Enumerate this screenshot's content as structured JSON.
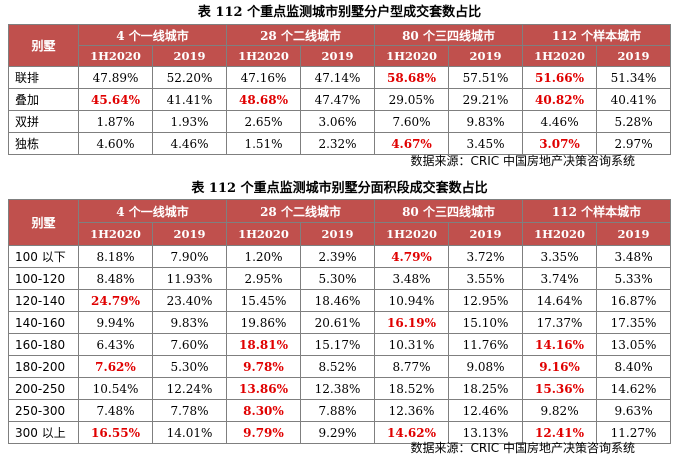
{
  "table1": {
    "title": "表 112 个重点监测城市别墅分户型成交套数占比",
    "corner": "别墅",
    "groups": [
      "4 个一线城市",
      "28 个二线城市",
      "80 个三四线城市",
      "112 个样本城市"
    ],
    "periods": [
      "1H2020",
      "2019"
    ],
    "rows": [
      {
        "label": "联排",
        "cells": [
          {
            "v": "47.89%",
            "hl": false
          },
          {
            "v": "52.20%",
            "hl": false
          },
          {
            "v": "47.16%",
            "hl": false
          },
          {
            "v": "47.14%",
            "hl": false
          },
          {
            "v": "58.68%",
            "hl": true
          },
          {
            "v": "57.51%",
            "hl": false
          },
          {
            "v": "51.66%",
            "hl": true
          },
          {
            "v": "51.34%",
            "hl": false
          }
        ]
      },
      {
        "label": "叠加",
        "cells": [
          {
            "v": "45.64%",
            "hl": true
          },
          {
            "v": "41.41%",
            "hl": false
          },
          {
            "v": "48.68%",
            "hl": true
          },
          {
            "v": "47.47%",
            "hl": false
          },
          {
            "v": "29.05%",
            "hl": false
          },
          {
            "v": "29.21%",
            "hl": false
          },
          {
            "v": "40.82%",
            "hl": true
          },
          {
            "v": "40.41%",
            "hl": false
          }
        ]
      },
      {
        "label": "双拼",
        "cells": [
          {
            "v": "1.87%",
            "hl": false
          },
          {
            "v": "1.93%",
            "hl": false
          },
          {
            "v": "2.65%",
            "hl": false
          },
          {
            "v": "3.06%",
            "hl": false
          },
          {
            "v": "7.60%",
            "hl": false
          },
          {
            "v": "9.83%",
            "hl": false
          },
          {
            "v": "4.46%",
            "hl": false
          },
          {
            "v": "5.28%",
            "hl": false
          }
        ]
      },
      {
        "label": "独栋",
        "cells": [
          {
            "v": "4.60%",
            "hl": false
          },
          {
            "v": "4.46%",
            "hl": false
          },
          {
            "v": "1.51%",
            "hl": false
          },
          {
            "v": "2.32%",
            "hl": false
          },
          {
            "v": "4.67%",
            "hl": true
          },
          {
            "v": "3.45%",
            "hl": false
          },
          {
            "v": "3.07%",
            "hl": true
          },
          {
            "v": "2.97%",
            "hl": false
          }
        ]
      }
    ],
    "source": "数据来源：CRIC 中国房地产决策咨询系统"
  },
  "table2": {
    "title": "表  112 个重点监测城市别墅分面积段成交套数占比",
    "corner": "别墅",
    "groups": [
      "4 个一线城市",
      "28 个二线城市",
      "80 个三四线城市",
      "112 个样本城市"
    ],
    "periods": [
      "1H2020",
      "2019"
    ],
    "rows": [
      {
        "label": "100 以下",
        "cells": [
          {
            "v": "8.18%",
            "hl": false
          },
          {
            "v": "7.90%",
            "hl": false
          },
          {
            "v": "1.20%",
            "hl": false
          },
          {
            "v": "2.39%",
            "hl": false
          },
          {
            "v": "4.79%",
            "hl": true
          },
          {
            "v": "3.72%",
            "hl": false
          },
          {
            "v": "3.35%",
            "hl": false
          },
          {
            "v": "3.48%",
            "hl": false
          }
        ]
      },
      {
        "label": "100-120",
        "cells": [
          {
            "v": "8.48%",
            "hl": false
          },
          {
            "v": "11.93%",
            "hl": false
          },
          {
            "v": "2.95%",
            "hl": false
          },
          {
            "v": "5.30%",
            "hl": false
          },
          {
            "v": "3.48%",
            "hl": false
          },
          {
            "v": "3.55%",
            "hl": false
          },
          {
            "v": "3.74%",
            "hl": false
          },
          {
            "v": "5.33%",
            "hl": false
          }
        ]
      },
      {
        "label": "120-140",
        "cells": [
          {
            "v": "24.79%",
            "hl": true
          },
          {
            "v": "23.40%",
            "hl": false
          },
          {
            "v": "15.45%",
            "hl": false
          },
          {
            "v": "18.46%",
            "hl": false
          },
          {
            "v": "10.94%",
            "hl": false
          },
          {
            "v": "12.95%",
            "hl": false
          },
          {
            "v": "14.64%",
            "hl": false
          },
          {
            "v": "16.87%",
            "hl": false
          }
        ]
      },
      {
        "label": "140-160",
        "cells": [
          {
            "v": "9.94%",
            "hl": false
          },
          {
            "v": "9.83%",
            "hl": false
          },
          {
            "v": "19.86%",
            "hl": false
          },
          {
            "v": "20.61%",
            "hl": false
          },
          {
            "v": "16.19%",
            "hl": true
          },
          {
            "v": "15.10%",
            "hl": false
          },
          {
            "v": "17.37%",
            "hl": false
          },
          {
            "v": "17.35%",
            "hl": false
          }
        ]
      },
      {
        "label": "160-180",
        "cells": [
          {
            "v": "6.43%",
            "hl": false
          },
          {
            "v": "7.60%",
            "hl": false
          },
          {
            "v": "18.81%",
            "hl": true
          },
          {
            "v": "15.17%",
            "hl": false
          },
          {
            "v": "10.31%",
            "hl": false
          },
          {
            "v": "11.76%",
            "hl": false
          },
          {
            "v": "14.16%",
            "hl": true
          },
          {
            "v": "13.05%",
            "hl": false
          }
        ]
      },
      {
        "label": "180-200",
        "cells": [
          {
            "v": "7.62%",
            "hl": true
          },
          {
            "v": "5.30%",
            "hl": false
          },
          {
            "v": "9.78%",
            "hl": true
          },
          {
            "v": "8.52%",
            "hl": false
          },
          {
            "v": "8.77%",
            "hl": false
          },
          {
            "v": "9.08%",
            "hl": false
          },
          {
            "v": "9.16%",
            "hl": true
          },
          {
            "v": "8.40%",
            "hl": false
          }
        ]
      },
      {
        "label": "200-250",
        "cells": [
          {
            "v": "10.54%",
            "hl": false
          },
          {
            "v": "12.24%",
            "hl": false
          },
          {
            "v": "13.86%",
            "hl": true
          },
          {
            "v": "12.38%",
            "hl": false
          },
          {
            "v": "18.52%",
            "hl": false
          },
          {
            "v": "18.25%",
            "hl": false
          },
          {
            "v": "15.36%",
            "hl": true
          },
          {
            "v": "14.62%",
            "hl": false
          }
        ]
      },
      {
        "label": "250-300",
        "cells": [
          {
            "v": "7.48%",
            "hl": false
          },
          {
            "v": "7.78%",
            "hl": false
          },
          {
            "v": "8.30%",
            "hl": true
          },
          {
            "v": "7.88%",
            "hl": false
          },
          {
            "v": "12.36%",
            "hl": false
          },
          {
            "v": "12.46%",
            "hl": false
          },
          {
            "v": "9.82%",
            "hl": false
          },
          {
            "v": "9.63%",
            "hl": false
          }
        ]
      },
      {
        "label": "300 以上",
        "cells": [
          {
            "v": "16.55%",
            "hl": true
          },
          {
            "v": "14.01%",
            "hl": false
          },
          {
            "v": "9.79%",
            "hl": true
          },
          {
            "v": "9.29%",
            "hl": false
          },
          {
            "v": "14.62%",
            "hl": true
          },
          {
            "v": "13.13%",
            "hl": false
          },
          {
            "v": "12.41%",
            "hl": true
          },
          {
            "v": "11.27%",
            "hl": false
          }
        ]
      }
    ],
    "source": "数据来源：CRIC 中国房地产决策咨询系统"
  },
  "colors": {
    "header_bg": "#c0504d",
    "header_text": "#ffffff",
    "highlight": "#e00000",
    "border": "#7f7f7f"
  }
}
